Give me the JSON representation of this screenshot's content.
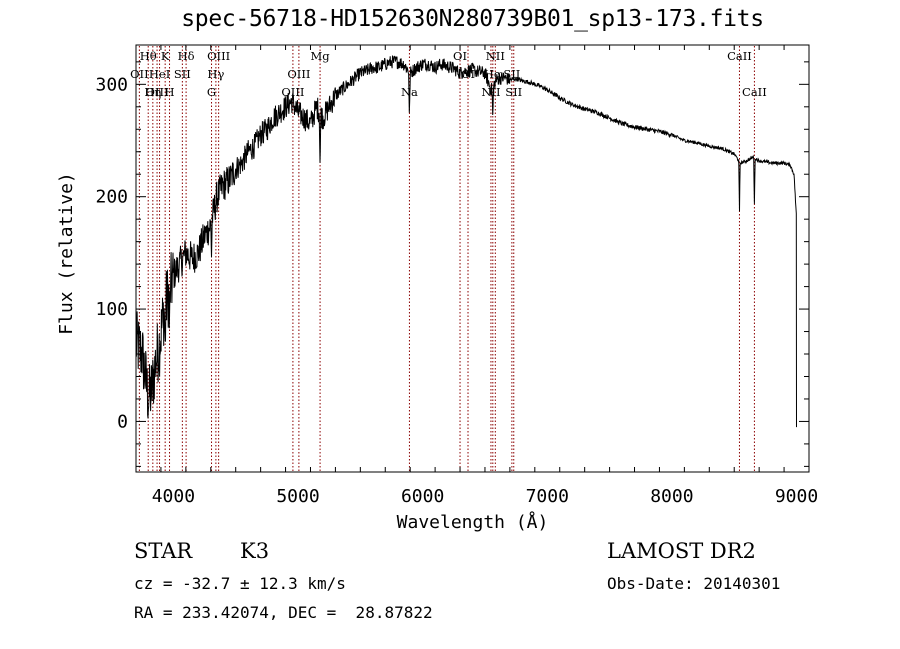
{
  "title": "spec-56718-HD152630N280739B01_sp13-173.fits",
  "info": {
    "object_class": "STAR",
    "subclass": "K3",
    "survey": "LAMOST DR2",
    "redshift_text": "cz = -32.7 ± 12.3 km/s",
    "obs_date": "Obs-Date: 20140301",
    "coordinates": "RA = 233.42074, DEC =  28.87822"
  },
  "chart_data": {
    "type": "line",
    "xlabel": "Wavelength (Å)",
    "ylabel": "Flux (relative)",
    "xlim": [
      3700,
      9100
    ],
    "ylim": [
      -45,
      335
    ],
    "xticks": [
      4000,
      5000,
      6000,
      7000,
      8000,
      9000
    ],
    "yticks": [
      0,
      100,
      200,
      300
    ],
    "colors": {
      "spectrum": "#000000",
      "lines": "#8b0000"
    },
    "series": [
      {
        "x": [
          3700,
          3750,
          3800,
          3830,
          3860,
          3890,
          3920,
          3950,
          3980,
          4000,
          4050,
          4100,
          4150,
          4200,
          4250,
          4300,
          4350,
          4400,
          4450,
          4500,
          4550,
          4600,
          4650,
          4700,
          4750,
          4800,
          4850,
          4900,
          4950,
          5000,
          5050,
          5100,
          5150,
          5200,
          5250,
          5300,
          5350,
          5400,
          5450,
          5500,
          5550,
          5600,
          5650,
          5700,
          5750,
          5800,
          5850,
          5900,
          5950,
          6000,
          6050,
          6100,
          6150,
          6200,
          6250,
          6300,
          6350,
          6400,
          6450,
          6500,
          6550,
          6600,
          6650,
          6700,
          6750,
          6800,
          6850,
          6900,
          6950,
          7000,
          7100,
          7200,
          7300,
          7400,
          7500,
          7600,
          7700,
          7800,
          7900,
          8000,
          8100,
          8200,
          8300,
          8400,
          8500,
          8550,
          8600,
          8650,
          8700,
          8800,
          8900,
          8950,
          8980,
          9000
        ],
        "y": [
          70,
          60,
          20,
          30,
          55,
          70,
          95,
          110,
          120,
          130,
          140,
          150,
          145,
          150,
          165,
          175,
          200,
          210,
          215,
          225,
          230,
          240,
          245,
          255,
          260,
          270,
          275,
          280,
          285,
          275,
          270,
          265,
          280,
          270,
          280,
          290,
          295,
          300,
          305,
          310,
          312,
          315,
          315,
          318,
          320,
          320,
          318,
          310,
          315,
          318,
          318,
          315,
          318,
          316,
          314,
          310,
          312,
          313,
          311,
          310,
          295,
          305,
          306,
          304,
          305,
          303,
          302,
          300,
          298,
          295,
          288,
          282,
          278,
          275,
          270,
          265,
          262,
          260,
          258,
          255,
          250,
          248,
          245,
          243,
          238,
          230,
          232,
          235,
          232,
          230,
          230,
          228,
          220,
          180
        ]
      }
    ],
    "line_markers": [
      {
        "name": "Hθ",
        "wavelength": 3798,
        "row": 0
      },
      {
        "name": "OII",
        "wavelength": 3727,
        "row": 1
      },
      {
        "name": "OIII",
        "wavelength": 3869,
        "row": 2
      },
      {
        "name": "HeI",
        "wavelength": 3889,
        "row": 1
      },
      {
        "name": "Hη",
        "wavelength": 3835,
        "row": 2
      },
      {
        "name": "K",
        "wavelength": 3934,
        "row": 0
      },
      {
        "name": "H",
        "wavelength": 3969,
        "row": 2
      },
      {
        "name": "Hδ",
        "wavelength": 4102,
        "row": 0
      },
      {
        "name": "SII",
        "wavelength": 4072,
        "row": 1
      },
      {
        "name": "OIII",
        "wavelength": 4363,
        "row": 0
      },
      {
        "name": "Hγ",
        "wavelength": 4341,
        "row": 1
      },
      {
        "name": "G",
        "wavelength": 4306,
        "row": 2
      },
      {
        "name": "OIII",
        "wavelength": 5007,
        "row": 1
      },
      {
        "name": "OIII",
        "wavelength": 4959,
        "row": 2
      },
      {
        "name": "Mg",
        "wavelength": 5177,
        "row": 0
      },
      {
        "name": "Na",
        "wavelength": 5894,
        "row": 2
      },
      {
        "name": "OI",
        "wavelength": 6300,
        "row": 0
      },
      {
        "name": "OI",
        "wavelength": 6364,
        "row": 1
      },
      {
        "name": "NII",
        "wavelength": 6583,
        "row": 0
      },
      {
        "name": "NII",
        "wavelength": 6548,
        "row": 2
      },
      {
        "name": "Hα",
        "wavelength": 6563,
        "row": 1
      },
      {
        "name": "SII",
        "wavelength": 6716,
        "row": 1
      },
      {
        "name": "SII",
        "wavelength": 6731,
        "row": 2
      },
      {
        "name": "CaII",
        "wavelength": 8542,
        "row": 0
      },
      {
        "name": "CaII",
        "wavelength": 8662,
        "row": 2
      }
    ]
  }
}
